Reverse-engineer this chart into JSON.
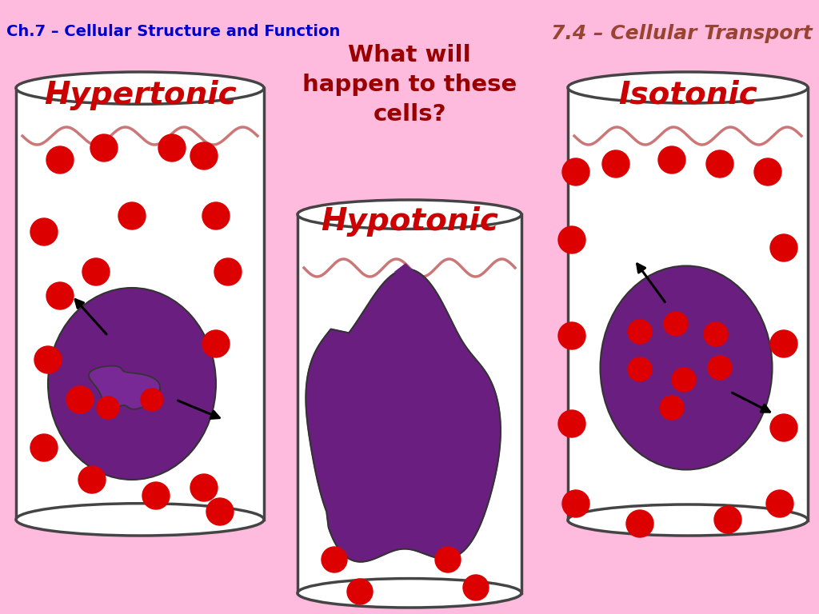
{
  "bg_color": "#ffbbdd",
  "title_left": "Ch.7 – Cellular Structure and Function",
  "title_right": "7.4 – Cellular Transport",
  "title_left_color": "#0000cc",
  "title_right_color": "#994433",
  "center_question": "What will\nhappen to these\ncells?",
  "center_question_color": "#990000",
  "label_hypertonic": "Hypertonic",
  "label_hypotonic": "Hypotonic",
  "label_isotonic": "Isotonic",
  "label_color": "#cc0000",
  "cylinder_fill": "#ffffff",
  "cylinder_stroke": "#444444",
  "wave_color": "#cc7777",
  "cell_color_purple": "#6a1f80",
  "dot_color": "#dd0000",
  "arrow_color": "#000000"
}
